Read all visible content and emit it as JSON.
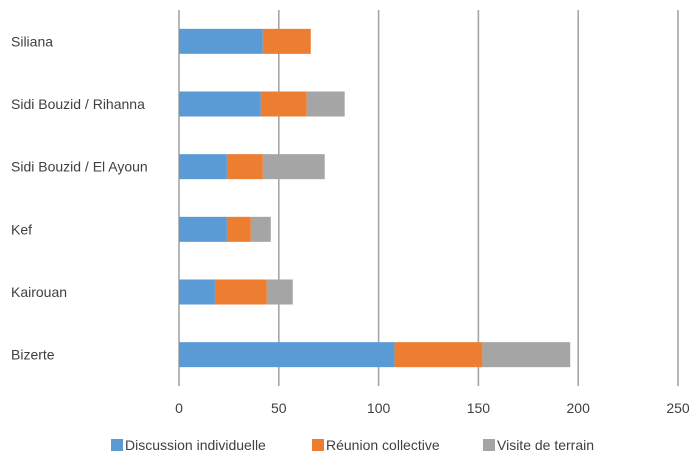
{
  "chart_data": {
    "type": "bar",
    "orientation": "horizontal",
    "stacked": true,
    "title": "",
    "xlabel": "",
    "ylabel": "",
    "categories": [
      "Siliana",
      "Sidi Bouzid / Rihanna",
      "Sidi Bouzid / El Ayoun",
      "Kef",
      "Kairouan",
      "Bizerte"
    ],
    "series": [
      {
        "name": "Discussion individuelle",
        "color": "#5b9bd5",
        "values": [
          42,
          41,
          24,
          24,
          18,
          108
        ]
      },
      {
        "name": "Réunion collective",
        "color": "#ed7d31",
        "values": [
          24,
          23,
          18,
          12,
          26,
          44
        ]
      },
      {
        "name": "Visite de terrain",
        "color": "#a5a5a5",
        "values": [
          0,
          19,
          31,
          10,
          13,
          44
        ]
      }
    ],
    "xlim": [
      0,
      250
    ],
    "x_ticks": [
      0,
      50,
      100,
      150,
      200,
      250
    ],
    "grid": "vertical",
    "gridline_color": "#a6a6a6",
    "legend_position": "bottom"
  }
}
